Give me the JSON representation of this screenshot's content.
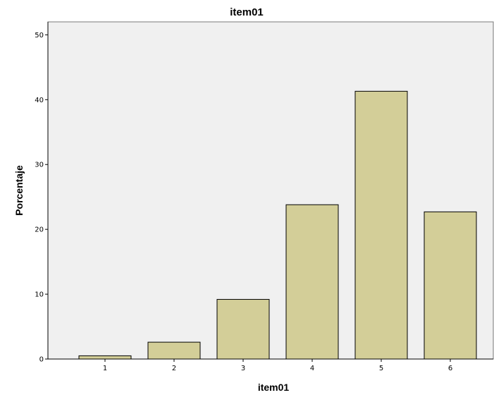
{
  "chart_data": {
    "type": "bar",
    "title": "item01",
    "xlabel": "item01",
    "ylabel": "Porcentaje",
    "categories": [
      "1",
      "2",
      "3",
      "4",
      "5",
      "6"
    ],
    "values": [
      0.5,
      2.6,
      9.2,
      23.8,
      41.3,
      22.7
    ],
    "ylim": [
      0,
      52
    ],
    "yticks": [
      "0",
      "10",
      "20",
      "30",
      "40",
      "50"
    ],
    "grid": false,
    "legend": "none"
  },
  "colors": {
    "plot_background": "#f0f0f0",
    "bar_fill": "#d3ce98",
    "bar_stroke": "#000000",
    "axis": "#000000",
    "frame": "#7a7a7a"
  }
}
